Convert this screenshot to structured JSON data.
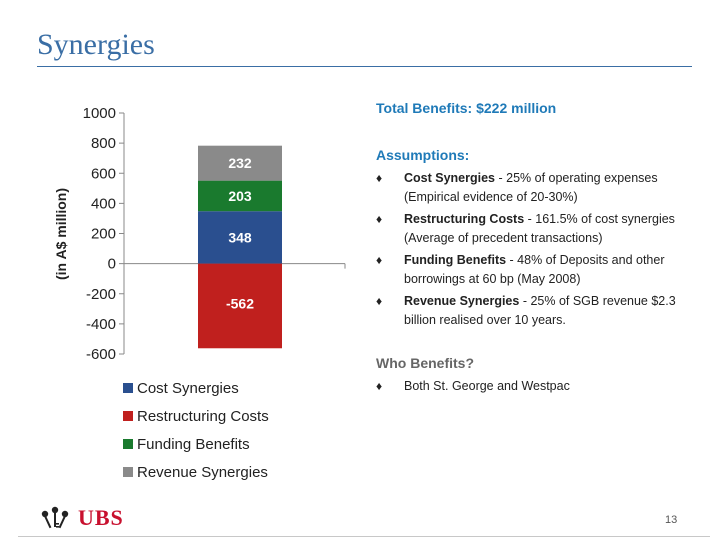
{
  "slide": {
    "title": "Synergies",
    "page_number": "13"
  },
  "chart_data": {
    "type": "bar",
    "stacked": true,
    "title": "",
    "xlabel": "",
    "ylabel": "(in A$ million)",
    "ylim": [
      -600,
      1000
    ],
    "yticks": [
      1000,
      800,
      600,
      400,
      200,
      0,
      -200,
      -400,
      -600
    ],
    "grid": false,
    "legend_position": "bottom",
    "series": [
      {
        "name": "Cost Synergies",
        "values": [
          348
        ],
        "color": "#2a4f8f",
        "label": "348"
      },
      {
        "name": "Restructuring Costs",
        "values": [
          -562
        ],
        "color": "#c0201e",
        "label": "-562"
      },
      {
        "name": "Funding Benefits",
        "values": [
          203
        ],
        "color": "#1a7a2e",
        "label": "203"
      },
      {
        "name": "Revenue Synergies",
        "values": [
          232
        ],
        "color": "#8a8a8a",
        "label": "232"
      }
    ]
  },
  "panel": {
    "total_label": "Total Benefits:",
    "total_value": "$222 million",
    "assumptions_heading": "Assumptions:",
    "assumptions": [
      {
        "term": "Cost Synergies",
        "text": " - 25% of operating expenses (Empirical evidence of 20-30%)"
      },
      {
        "term": "Restructuring Costs",
        "text": " - 161.5% of cost synergies  (Average of precedent transactions)"
      },
      {
        "term": "Funding Benefits",
        "text": " - 48% of Deposits and other borrowings at 60 bp (May 2008)"
      },
      {
        "term": "Revenue Synergies",
        "text": " - 25% of SGB revenue $2.3 billion realised over 10 years."
      }
    ],
    "who_heading": "Who Benefits?",
    "who_items": [
      "Both St. George and Westpac"
    ],
    "bullet_glyph": "♦"
  },
  "logo": {
    "name": "UBS",
    "icon": "three-keys-icon"
  }
}
